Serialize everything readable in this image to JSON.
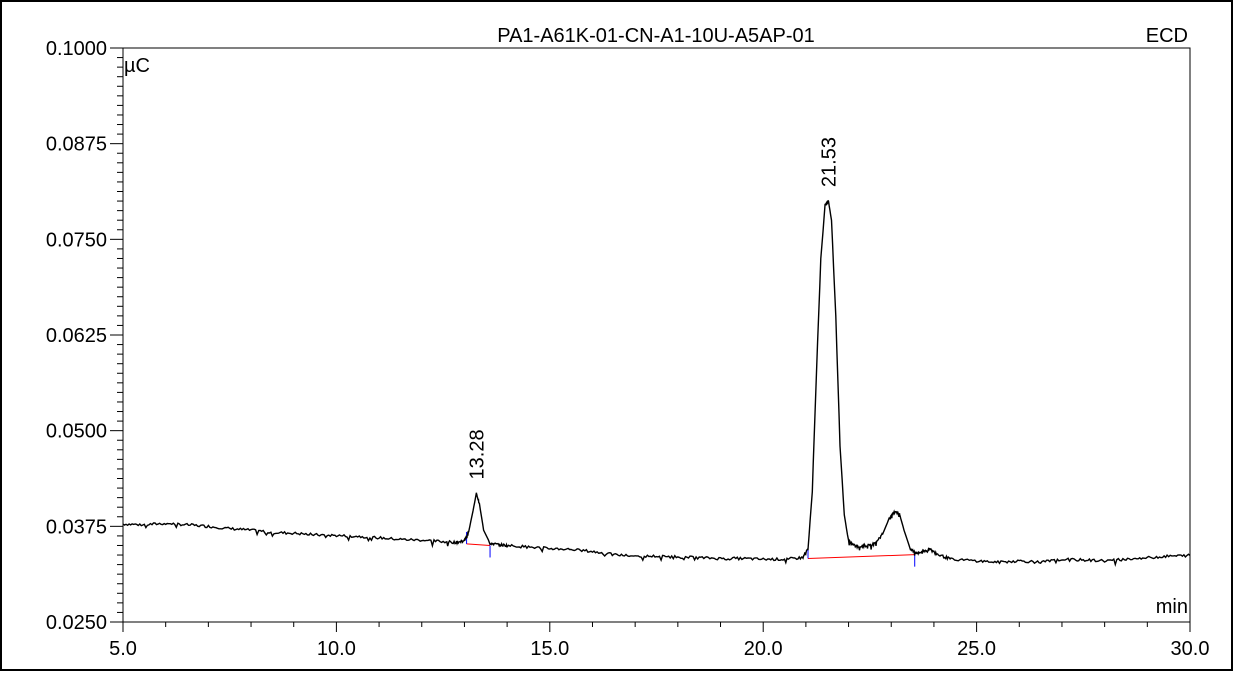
{
  "chart_data": {
    "type": "line",
    "title": "PA1-A61K-01-CN-A1-10U-A5AP-01",
    "detector": "ECD",
    "ylabel": "µC",
    "xlabel": "min",
    "xlim": [
      5.0,
      30.0
    ],
    "ylim": [
      0.025,
      0.1
    ],
    "x_ticks": [
      "5.0",
      "10.0",
      "15.0",
      "20.0",
      "25.0",
      "30.0"
    ],
    "y_ticks": [
      "0.0250",
      "0.0375",
      "0.0500",
      "0.0625",
      "0.0750",
      "0.0875",
      "0.1000"
    ],
    "grid": false,
    "series": [
      {
        "x": [
          5.0,
          5.5,
          6.0,
          6.5,
          7.0,
          7.5,
          8.0,
          8.5,
          9.0,
          9.5,
          10.0,
          10.5,
          11.0,
          11.5,
          12.0,
          12.5,
          12.8,
          13.0,
          13.1,
          13.2,
          13.28,
          13.35,
          13.45,
          13.6,
          13.8,
          14.0,
          14.5,
          15.0,
          15.5,
          16.0,
          16.5,
          17.0,
          17.5,
          18.0,
          18.5,
          19.0,
          19.5,
          20.0,
          20.5,
          20.9,
          21.05,
          21.15,
          21.25,
          21.35,
          21.45,
          21.53,
          21.6,
          21.7,
          21.8,
          21.9,
          22.0,
          22.2,
          22.4,
          22.6,
          22.8,
          22.95,
          23.1,
          23.2,
          23.3,
          23.45,
          23.6,
          23.75,
          23.9,
          24.1,
          24.4,
          25.0,
          25.5,
          26.0,
          26.5,
          27.0,
          27.5,
          28.0,
          28.5,
          29.0,
          29.5,
          30.0
        ],
        "y": [
          0.0378,
          0.0377,
          0.0379,
          0.0377,
          0.0375,
          0.0372,
          0.037,
          0.0367,
          0.0366,
          0.0364,
          0.0363,
          0.0362,
          0.036,
          0.0358,
          0.0357,
          0.0355,
          0.0354,
          0.0356,
          0.0368,
          0.0395,
          0.0418,
          0.0405,
          0.037,
          0.0353,
          0.0351,
          0.035,
          0.0348,
          0.0346,
          0.0345,
          0.0342,
          0.0338,
          0.0336,
          0.0336,
          0.0335,
          0.0334,
          0.0333,
          0.0333,
          0.0332,
          0.0332,
          0.0334,
          0.0345,
          0.042,
          0.058,
          0.0725,
          0.0795,
          0.08,
          0.0775,
          0.065,
          0.048,
          0.039,
          0.0355,
          0.0348,
          0.035,
          0.0352,
          0.0365,
          0.0385,
          0.0395,
          0.039,
          0.037,
          0.0345,
          0.034,
          0.0342,
          0.0345,
          0.0338,
          0.0332,
          0.033,
          0.0328,
          0.033,
          0.0328,
          0.0332,
          0.0331,
          0.033,
          0.0332,
          0.0334,
          0.0336,
          0.0337
        ]
      }
    ],
    "peaks": [
      {
        "rt": 13.28,
        "label": "13.28",
        "height": 0.0418,
        "start": 13.05,
        "end": 13.6,
        "baseline_start": 0.0352,
        "baseline_end": 0.035
      },
      {
        "rt": 21.53,
        "label": "21.53",
        "height": 0.08,
        "start": 21.05,
        "end": 23.55,
        "baseline_start": 0.0333,
        "baseline_end": 0.0338
      }
    ],
    "colors": {
      "trace": "#000000",
      "baseline": "#ff0000",
      "peak_marker": "#0000ff"
    }
  }
}
